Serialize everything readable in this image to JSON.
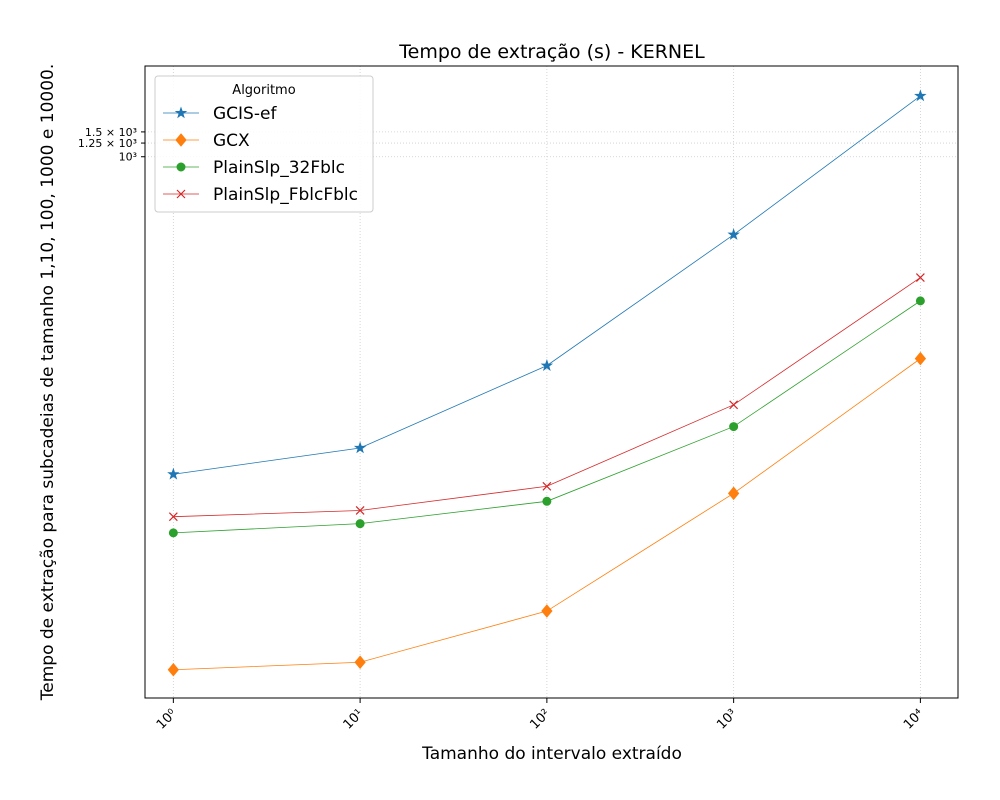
{
  "chart_data": {
    "type": "line",
    "title": "Tempo de extração (s) - KERNEL",
    "xlabel": "Tamanho do intervalo extraído",
    "ylabel": "Tempo de extração para subcadeias de tamanho 1,10, 100, 1000 e 10000.",
    "x": [
      1,
      10,
      100,
      1000,
      10000
    ],
    "xscale": "log",
    "yscale": "log",
    "xlim": [
      0.705,
      15900
    ],
    "ylim": [
      0.145,
      4400
    ],
    "xticks": [
      {
        "value": 1,
        "label": "10⁰"
      },
      {
        "value": 10,
        "label": "10¹"
      },
      {
        "value": 100,
        "label": "10²"
      },
      {
        "value": 1000,
        "label": "10³"
      },
      {
        "value": 10000,
        "label": "10⁴"
      }
    ],
    "yticks": [
      {
        "value": 1000,
        "label": "10³"
      },
      {
        "value": 1250,
        "label": "1.25 × 10³"
      },
      {
        "value": 1500,
        "label": "1.5 × 10³"
      }
    ],
    "grid": true,
    "legend_title": "Algoritmo",
    "legend_position": "upper left",
    "series": [
      {
        "name": "GCIS-ef",
        "color": "#1f77b4",
        "marker": "star",
        "values": [
          5.6,
          8.6,
          33,
          280,
          2700
        ]
      },
      {
        "name": "GCX",
        "color": "#ff7f0e",
        "marker": "diamond",
        "values": [
          0.23,
          0.26,
          0.6,
          4.1,
          37
        ]
      },
      {
        "name": "PlainSlp_32Fblc",
        "color": "#2ca02c",
        "marker": "circle",
        "values": [
          2.15,
          2.5,
          3.6,
          12.2,
          95
        ]
      },
      {
        "name": "PlainSlp_FblcFblc",
        "color": "#d62728",
        "marker": "x",
        "values": [
          2.8,
          3.1,
          4.6,
          17.4,
          139
        ]
      }
    ]
  }
}
